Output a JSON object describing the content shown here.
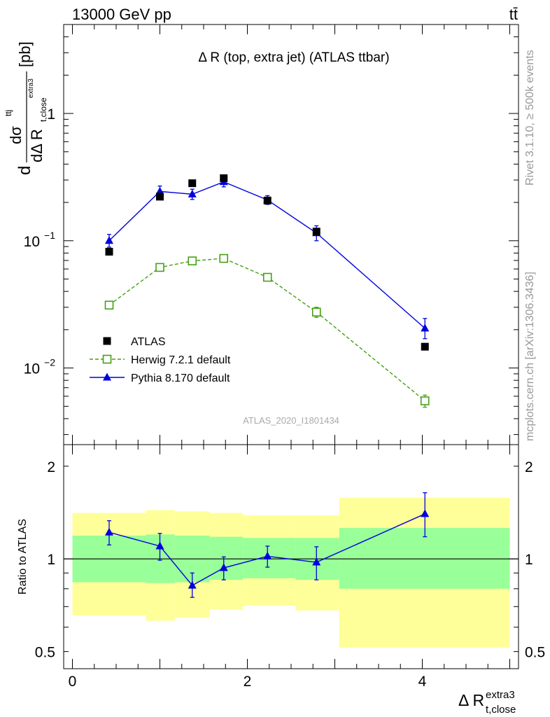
{
  "header": {
    "collision": "13000 GeV pp",
    "process": "tt̄"
  },
  "side_labels": {
    "rivet": "Rivet 3.1.10, ≥ 500k events",
    "source": "mcplots.cern.ch [arXiv:1306.3436]"
  },
  "chart_data": [
    {
      "type": "line",
      "panel": "main",
      "title": "Δ R (top, extra jet) (ATLAS ttbar)",
      "watermark": "ATLAS_2020_I1801434",
      "ylabel_parts": {
        "d": "d",
        "sigma": "dσ",
        "sigma_sup": "ttj",
        "denom": "dΔ R",
        "denom_sub": "t,close",
        "denom_sup": "extra3",
        "unit": "[pb]"
      },
      "yscale": "log",
      "ylim": [
        0.0025,
        5
      ],
      "xlim": [
        -0.1,
        5.1
      ],
      "yticks": [
        {
          "value": 1,
          "label": "1"
        },
        {
          "value": 0.1,
          "label": "10",
          "sup": "−1"
        },
        {
          "value": 0.01,
          "label": "10",
          "sup": "−2"
        }
      ],
      "legend_position": "lower-left",
      "series": [
        {
          "name": "ATLAS",
          "marker": "filled-square",
          "color": "#000000",
          "x": [
            0.42,
            1.0,
            1.37,
            1.73,
            2.23,
            2.79,
            4.03
          ],
          "y": [
            0.082,
            0.222,
            0.283,
            0.31,
            0.207,
            0.118,
            0.0147
          ]
        },
        {
          "name": "Herwig 7.2.1 default",
          "marker": "open-square",
          "line": "dashed",
          "color": "#44a014",
          "x": [
            0.42,
            1.0,
            1.37,
            1.73,
            2.23,
            2.79,
            4.03
          ],
          "y": [
            0.0312,
            0.0617,
            0.0694,
            0.0726,
            0.0516,
            0.0275,
            0.00552
          ],
          "err_lo": [
            0.0015,
            0.0035,
            0.003,
            0.003,
            0.002,
            0.0025,
            0.0006
          ],
          "err_hi": [
            0.0015,
            0.0035,
            0.003,
            0.003,
            0.002,
            0.0025,
            0.0006
          ]
        },
        {
          "name": "Pythia 8.170 default",
          "marker": "filled-triangle",
          "line": "solid",
          "color": "#0000dd",
          "x": [
            0.42,
            1.0,
            1.37,
            1.73,
            2.23,
            2.79,
            4.03
          ],
          "y": [
            0.1,
            0.244,
            0.232,
            0.29,
            0.209,
            0.115,
            0.0205
          ],
          "err_lo": [
            0.011,
            0.021,
            0.021,
            0.025,
            0.016,
            0.015,
            0.0035
          ],
          "err_hi": [
            0.012,
            0.025,
            0.022,
            0.028,
            0.017,
            0.016,
            0.004
          ]
        }
      ]
    },
    {
      "type": "line",
      "panel": "ratio",
      "ylabel": "Ratio to ATLAS",
      "xlabel": "Δ R",
      "xlabel_sub": "t,close",
      "xlabel_sup": "extra3",
      "yscale": "log",
      "ylim": [
        0.44,
        2.35
      ],
      "xlim": [
        -0.1,
        5.1
      ],
      "xticks": [
        {
          "value": 0,
          "label": "0"
        },
        {
          "value": 2,
          "label": "2"
        },
        {
          "value": 4,
          "label": "4"
        }
      ],
      "yticks": [
        {
          "value": 0.5,
          "label": "0.5"
        },
        {
          "value": 1,
          "label": "1"
        },
        {
          "value": 2,
          "label": "2"
        }
      ],
      "bands": {
        "bin_edges": [
          0.0,
          0.84,
          1.17,
          1.57,
          1.95,
          2.55,
          3.05,
          5.0
        ],
        "outer_lo": [
          0.655,
          0.63,
          0.645,
          0.685,
          0.705,
          0.68,
          0.515
        ],
        "outer_hi": [
          1.41,
          1.44,
          1.425,
          1.41,
          1.385,
          1.385,
          1.58
        ],
        "inner_lo": [
          0.84,
          0.835,
          0.84,
          0.855,
          0.865,
          0.855,
          0.8
        ],
        "inner_hi": [
          1.19,
          1.2,
          1.19,
          1.18,
          1.17,
          1.17,
          1.26
        ],
        "outer_color": "#ffff99",
        "inner_color": "#99ff99"
      },
      "series": [
        {
          "name": "Pythia 8.170 default",
          "marker": "filled-triangle",
          "color": "#0000dd",
          "x": [
            0.42,
            1.0,
            1.37,
            1.73,
            2.23,
            2.79,
            4.03
          ],
          "y": [
            1.22,
            1.1,
            0.82,
            0.935,
            1.02,
            0.975,
            1.4
          ],
          "err_lo": [
            0.11,
            0.11,
            0.07,
            0.08,
            0.08,
            0.12,
            0.22
          ],
          "err_hi": [
            0.11,
            0.11,
            0.08,
            0.08,
            0.08,
            0.12,
            0.24
          ]
        }
      ]
    }
  ]
}
